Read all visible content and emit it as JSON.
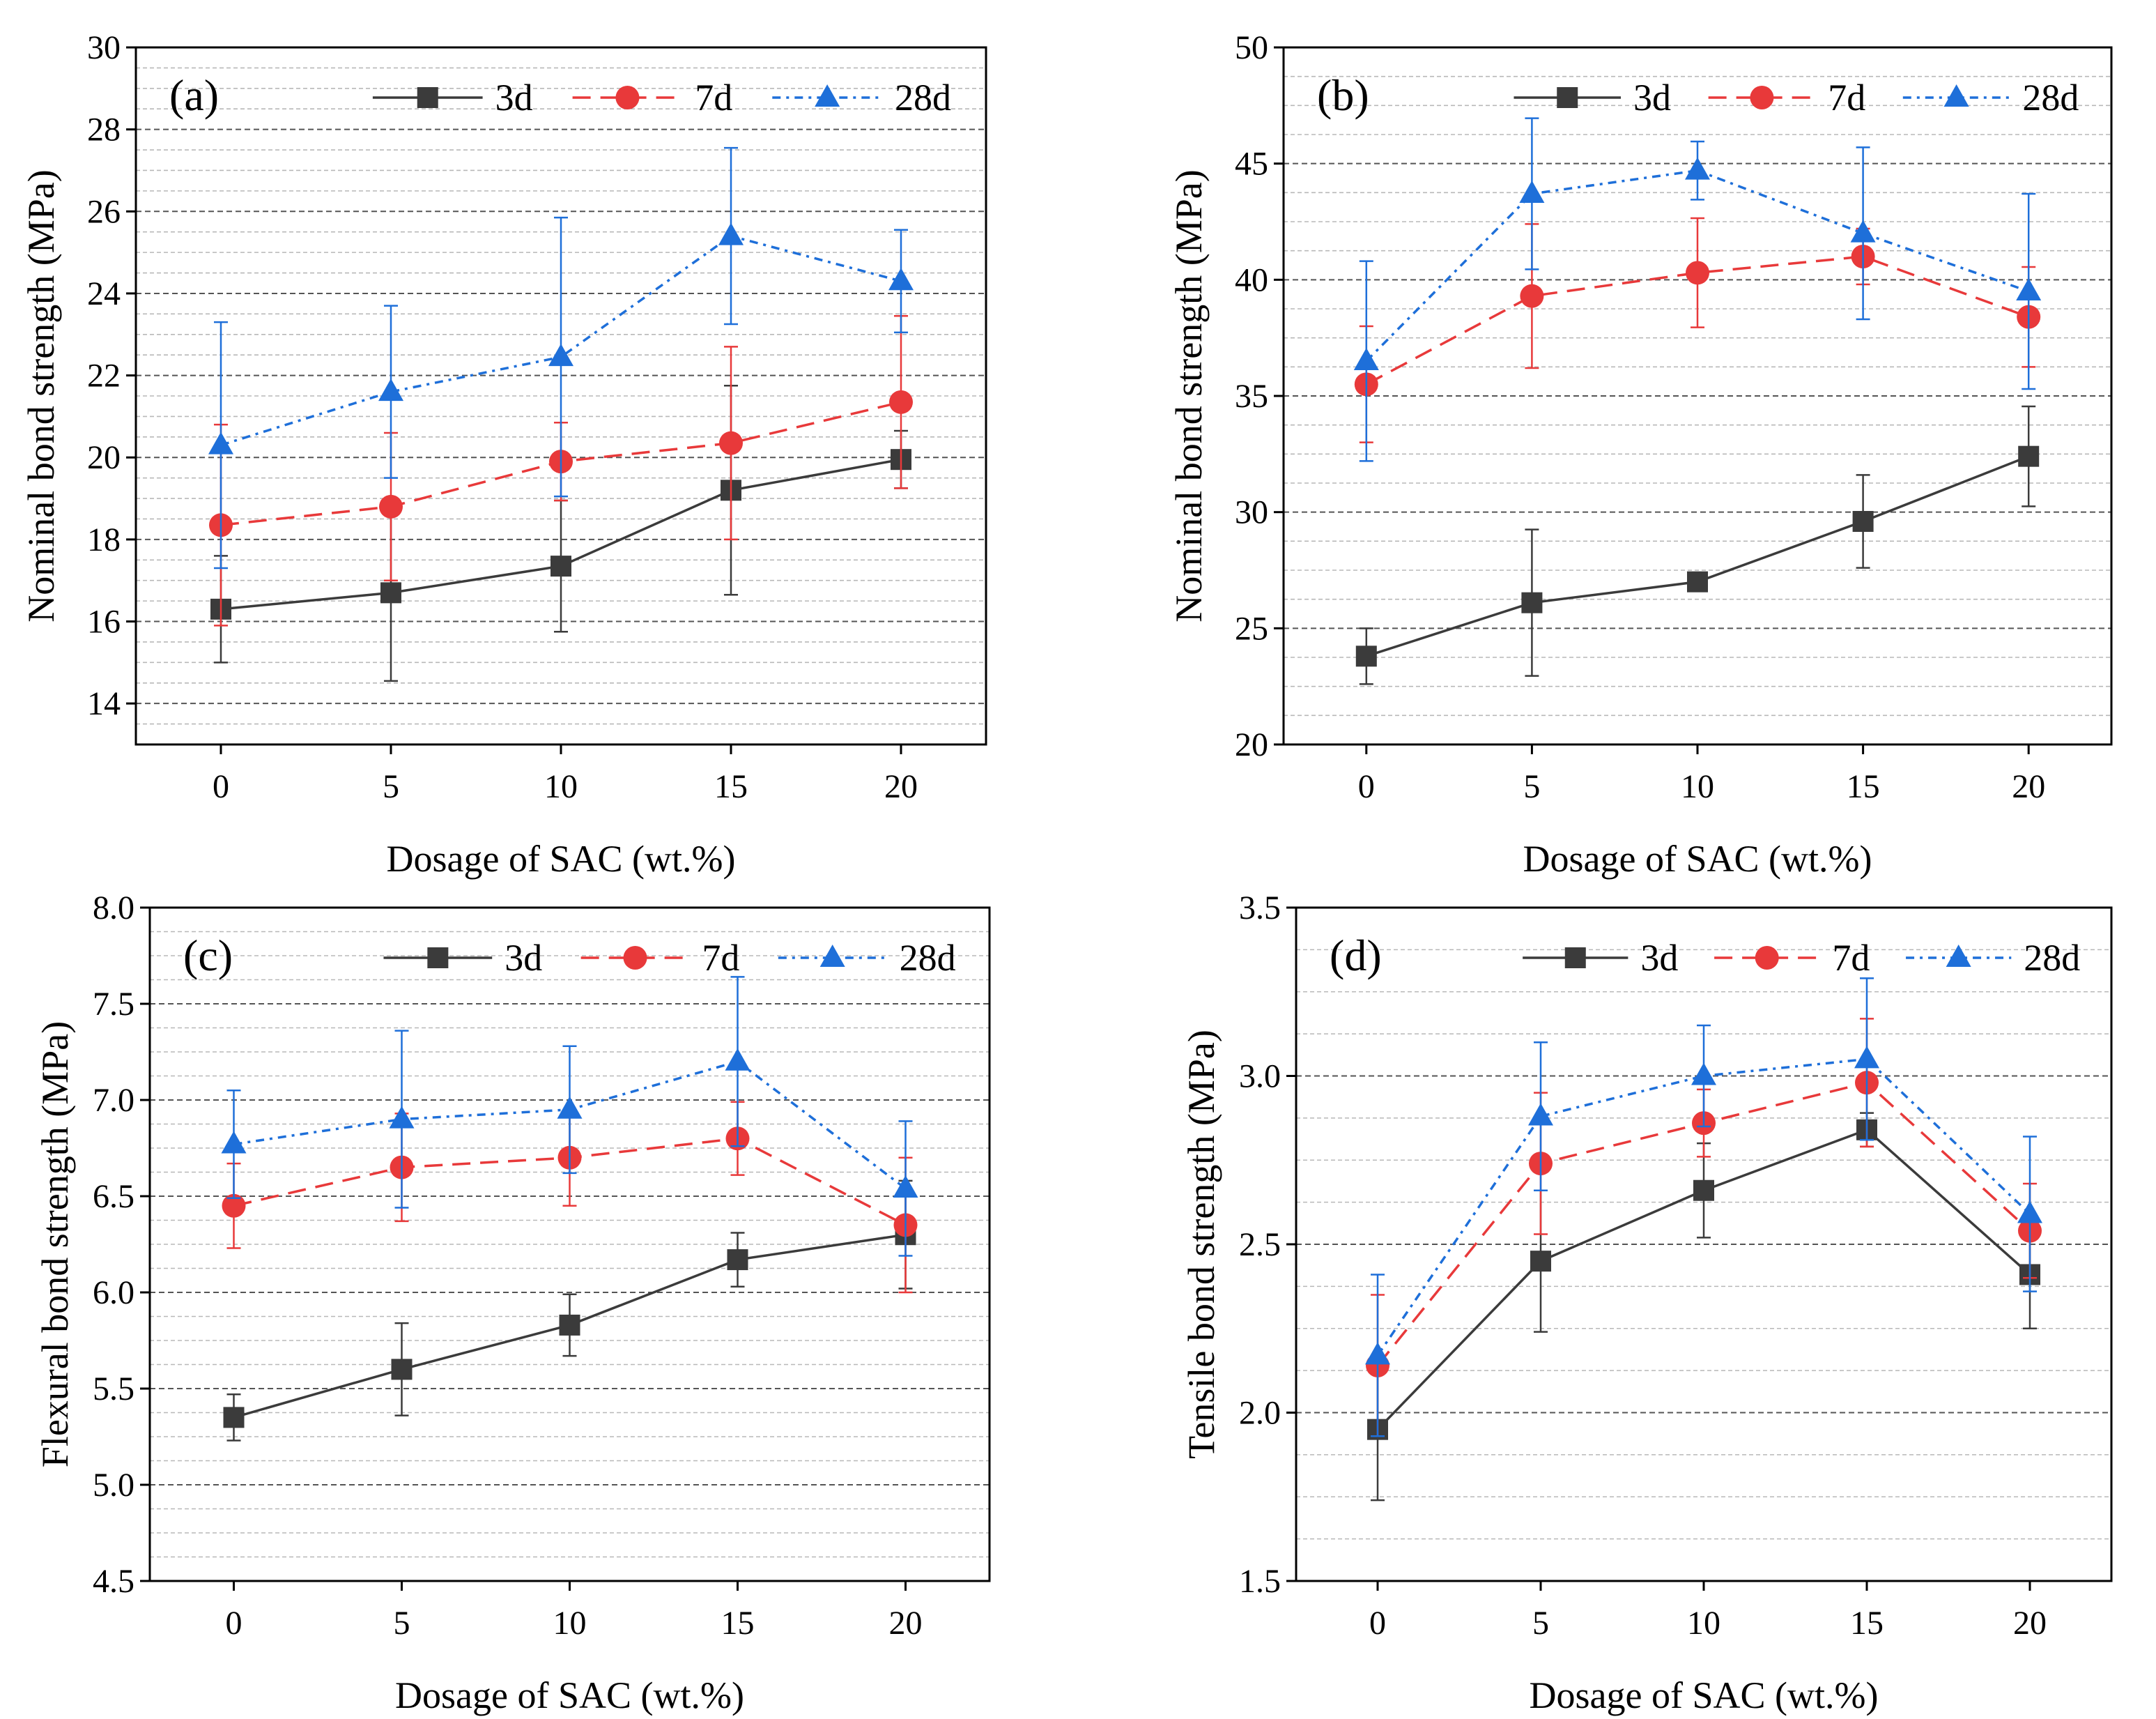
{
  "colors": {
    "3d": "#3b3b3b",
    "7d": "#e8393a",
    "28d": "#1e6fd9",
    "grid_major": "#555555",
    "grid_minor": "#b8b8b8"
  },
  "chart_data": [
    {
      "type": "line",
      "panel_label": "(a)",
      "title": "",
      "xlabel": "Dosage of SAC (wt.%)",
      "ylabel": "Nominal bond strength (MPa)",
      "x": [
        0,
        5,
        10,
        15,
        20
      ],
      "x_tick_labels": [
        "0",
        "5",
        "10",
        "15",
        "20"
      ],
      "xlim": [
        -2.5,
        22.5
      ],
      "ylim": [
        13,
        30
      ],
      "y_tick_values": [
        14,
        16,
        18,
        20,
        22,
        24,
        26,
        28,
        30
      ],
      "y_tick_labels": [
        "14",
        "16",
        "18",
        "20",
        "22",
        "24",
        "26",
        "28",
        "30"
      ],
      "legend": [
        "3d",
        "7d",
        "28d"
      ],
      "legend_position": "top-right",
      "series": [
        {
          "name": "3d",
          "marker": "square",
          "dash": "solid",
          "values": [
            16.3,
            16.7,
            17.35,
            19.2,
            19.95
          ],
          "error": [
            1.3,
            2.15,
            1.6,
            2.55,
            0.7
          ]
        },
        {
          "name": "7d",
          "marker": "circle",
          "dash": "dashed",
          "values": [
            18.35,
            18.8,
            19.9,
            20.35,
            21.35
          ],
          "error": [
            2.45,
            1.8,
            0.95,
            2.35,
            2.1
          ]
        },
        {
          "name": "28d",
          "marker": "triangle",
          "dash": "dashdot",
          "values": [
            20.3,
            21.6,
            22.45,
            25.4,
            24.3
          ],
          "error": [
            3.0,
            2.1,
            3.4,
            2.15,
            1.25
          ]
        }
      ]
    },
    {
      "type": "line",
      "panel_label": "(b)",
      "title": "",
      "xlabel": "Dosage of SAC (wt.%)",
      "ylabel": "Nominal bond strength (MPa)",
      "x": [
        0,
        5,
        10,
        15,
        20
      ],
      "x_tick_labels": [
        "0",
        "5",
        "10",
        "15",
        "20"
      ],
      "xlim": [
        -2.5,
        22.5
      ],
      "ylim": [
        20,
        50
      ],
      "y_tick_values": [
        20,
        25,
        30,
        35,
        40,
        45,
        50
      ],
      "y_tick_labels": [
        "20",
        "25",
        "30",
        "35",
        "40",
        "45",
        "50"
      ],
      "legend": [
        "3d",
        "7d",
        "28d"
      ],
      "legend_position": "top-right",
      "series": [
        {
          "name": "3d",
          "marker": "square",
          "dash": "solid",
          "values": [
            23.8,
            26.1,
            27.0,
            29.6,
            32.4
          ],
          "error": [
            1.2,
            3.15,
            0.0,
            2.0,
            2.15
          ]
        },
        {
          "name": "7d",
          "marker": "circle",
          "dash": "dashed",
          "values": [
            35.5,
            39.3,
            40.3,
            41.0,
            38.4
          ],
          "error": [
            2.5,
            3.1,
            2.35,
            1.2,
            2.15
          ]
        },
        {
          "name": "28d",
          "marker": "triangle",
          "dash": "dashdot",
          "values": [
            36.5,
            43.7,
            44.7,
            42.0,
            39.5
          ],
          "error": [
            4.3,
            3.25,
            1.25,
            3.7,
            4.2
          ]
        }
      ]
    },
    {
      "type": "line",
      "panel_label": "(c)",
      "title": "",
      "xlabel": "Dosage of SAC (wt.%)",
      "ylabel": "Flexural bond strength (MPa)",
      "x": [
        0,
        5,
        10,
        15,
        20
      ],
      "x_tick_labels": [
        "0",
        "5",
        "10",
        "15",
        "20"
      ],
      "xlim": [
        -2.5,
        22.5
      ],
      "ylim": [
        4.5,
        8.0
      ],
      "y_tick_values": [
        4.5,
        5.0,
        5.5,
        6.0,
        6.5,
        7.0,
        7.5,
        8.0
      ],
      "y_tick_labels": [
        "4.5",
        "5.0",
        "5.5",
        "6.0",
        "6.5",
        "7.0",
        "7.5",
        "8.0"
      ],
      "legend": [
        "3d",
        "7d",
        "28d"
      ],
      "legend_position": "top-right",
      "series": [
        {
          "name": "3d",
          "marker": "square",
          "dash": "solid",
          "values": [
            5.35,
            5.6,
            5.83,
            6.17,
            6.3
          ],
          "error": [
            0.12,
            0.24,
            0.16,
            0.14,
            0.28
          ]
        },
        {
          "name": "7d",
          "marker": "circle",
          "dash": "dashed",
          "values": [
            6.45,
            6.65,
            6.7,
            6.8,
            6.35
          ],
          "error": [
            0.22,
            0.28,
            0.25,
            0.19,
            0.35
          ]
        },
        {
          "name": "28d",
          "marker": "triangle",
          "dash": "dashdot",
          "values": [
            6.77,
            6.9,
            6.95,
            7.2,
            6.54
          ],
          "error": [
            0.28,
            0.46,
            0.33,
            0.44,
            0.35
          ]
        }
      ]
    },
    {
      "type": "line",
      "panel_label": "(d)",
      "title": "",
      "xlabel": "Dosage of SAC (wt.%)",
      "ylabel": "Tensile bond strength (MPa)",
      "x": [
        0,
        5,
        10,
        15,
        20
      ],
      "x_tick_labels": [
        "0",
        "5",
        "10",
        "15",
        "20"
      ],
      "xlim": [
        -2.5,
        22.5
      ],
      "ylim": [
        1.5,
        3.5
      ],
      "y_tick_values": [
        1.5,
        2.0,
        2.5,
        3.0,
        3.5
      ],
      "y_tick_labels": [
        "1.5",
        "2.0",
        "2.5",
        "3.0",
        "3.5"
      ],
      "legend": [
        "3d",
        "7d",
        "28d"
      ],
      "legend_position": "top-right",
      "series": [
        {
          "name": "3d",
          "marker": "square",
          "dash": "solid",
          "values": [
            1.95,
            2.45,
            2.66,
            2.84,
            2.41
          ],
          "error": [
            0.21,
            0.21,
            0.14,
            0.05,
            0.16
          ]
        },
        {
          "name": "7d",
          "marker": "circle",
          "dash": "dashed",
          "values": [
            2.14,
            2.74,
            2.86,
            2.98,
            2.54
          ],
          "error": [
            0.21,
            0.21,
            0.1,
            0.19,
            0.14
          ]
        },
        {
          "name": "28d",
          "marker": "triangle",
          "dash": "dashdot",
          "values": [
            2.17,
            2.88,
            3.0,
            3.05,
            2.59
          ],
          "error": [
            0.24,
            0.22,
            0.15,
            0.24,
            0.23
          ]
        }
      ]
    }
  ]
}
